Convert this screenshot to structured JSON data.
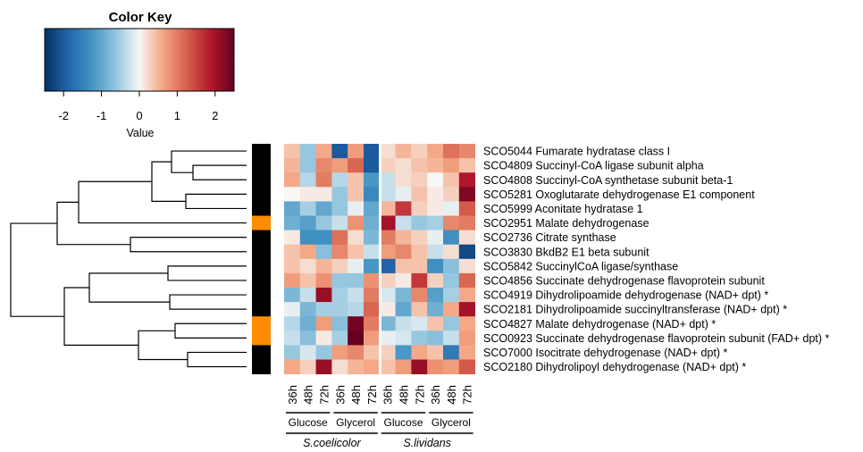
{
  "chart_data": {
    "type": "heatmap",
    "color_key": {
      "title": "Color Key",
      "xlabel": "Value",
      "range": [
        -2.5,
        2.5
      ],
      "ticks": [
        -2,
        -1,
        0,
        1,
        2
      ],
      "tick_labels": [
        "-2",
        "-1",
        "0",
        "1",
        "2"
      ],
      "colors": [
        "#053061",
        "#2166ac",
        "#4393c3",
        "#92c5de",
        "#f7f7f7",
        "#f4a582",
        "#d6604d",
        "#b2182b",
        "#67001f"
      ]
    },
    "rows": [
      "SCO5044 Fumarate hydratase class I",
      "SCO4809 Succinyl-CoA ligase subunit alpha",
      "SCO4808 Succinyl-CoA synthetase subunit beta-1",
      "SCO5281 Oxoglutarate dehydrogenase E1 component",
      "SCO5999 Aconitate hydratase 1",
      "SCO2951 Malate dehydrogenase",
      "SCO2736 Citrate synthase",
      "SCO3830 BkdB2 E1 beta subunit",
      "SCO5842 SuccinylCoA ligase/synthase",
      "SCO4856 Succinate dehydrogenase flavoprotein subunit",
      "SCO4919 Dihydrolipoamide dehydrogenase (NAD+ dpt) *",
      "SCO2181 Dihydrolipoamide succinyltransferase (NAD+ dpt) *",
      "SCO4827 Malate dehydrogenase (NAD+ dpt) *",
      "SCO0923 Succinate dehydrogenase flavoprotein subunit (FAD+ dpt) *",
      "SCO7000 Isocitrate dehydrogenase (NAD+ dpt) *",
      "SCO2180 Dihydrolipoyl dehydrogenase (NAD+ dpt) *"
    ],
    "columns": [
      "36h",
      "48h",
      "72h",
      "36h",
      "48h",
      "72h",
      "36h",
      "48h",
      "72h",
      "36h",
      "48h",
      "72h"
    ],
    "condition_groups": [
      {
        "label": "Glucose",
        "columns": [
          0,
          1,
          2
        ]
      },
      {
        "label": "Glycerol",
        "columns": [
          3,
          4,
          5
        ]
      },
      {
        "label": "Glucose",
        "columns": [
          6,
          7,
          8
        ]
      },
      {
        "label": "Glycerol",
        "columns": [
          9,
          10,
          11
        ]
      }
    ],
    "species_groups": [
      {
        "label": "S.coelicolor",
        "columns": [
          0,
          5
        ]
      },
      {
        "label": "S.lividans",
        "columns": [
          6,
          11
        ]
      }
    ],
    "side_colors": [
      "#000000",
      "#000000",
      "#000000",
      "#000000",
      "#000000",
      "#ff8c00",
      "#000000",
      "#000000",
      "#000000",
      "#000000",
      "#000000",
      "#000000",
      "#ff8c00",
      "#ff8c00",
      "#000000",
      "#000000"
    ],
    "values": [
      [
        0.4,
        -0.6,
        0.6,
        -2.0,
        0.7,
        -2.0,
        0.2,
        0.5,
        0.3,
        0.6,
        1.1,
        0.9
      ],
      [
        0.5,
        -0.6,
        0.9,
        0.7,
        1.2,
        -2.0,
        0.3,
        0.2,
        0.4,
        0.5,
        0.7,
        0.4
      ],
      [
        0.6,
        -0.4,
        1.0,
        -0.4,
        0.4,
        -1.2,
        -0.3,
        0.2,
        0.3,
        0.0,
        0.4,
        1.9
      ],
      [
        0.0,
        0.1,
        0.1,
        -0.6,
        0.4,
        -1.4,
        -0.3,
        -0.1,
        0.4,
        0.1,
        0.3,
        2.3
      ],
      [
        -1.0,
        -0.5,
        -1.0,
        -0.6,
        -0.1,
        -1.0,
        0.5,
        1.6,
        0.3,
        0.1,
        -0.1,
        1.3
      ],
      [
        -0.9,
        -1.1,
        -0.6,
        -0.3,
        0.8,
        -0.9,
        2.0,
        -0.3,
        -0.6,
        -0.5,
        0.9,
        1.0
      ],
      [
        0.1,
        -1.3,
        -1.3,
        1.1,
        0.2,
        -0.8,
        1.0,
        0.5,
        0.3,
        -0.1,
        -1.3,
        0.2
      ],
      [
        0.4,
        0.6,
        -0.7,
        0.9,
        0.4,
        -0.3,
        0.7,
        0.9,
        0.4,
        -0.3,
        0.2,
        -2.2
      ],
      [
        0.4,
        0.2,
        0.5,
        0.3,
        -0.1,
        -1.2,
        -1.9,
        0.4,
        0.4,
        -1.3,
        -0.7,
        0.2
      ],
      [
        0.7,
        0.4,
        0.8,
        -0.6,
        -0.6,
        0.8,
        0.3,
        0.1,
        1.6,
        0.3,
        -0.6,
        1.2
      ],
      [
        -0.8,
        -0.3,
        2.1,
        -0.5,
        -0.3,
        1.0,
        -0.2,
        -0.8,
        0.9,
        -1.1,
        -0.5,
        0.6
      ],
      [
        -0.1,
        -0.8,
        -0.5,
        -0.5,
        -0.4,
        1.2,
        0.1,
        -1.0,
        0.4,
        -0.9,
        0.6,
        2.0
      ],
      [
        -0.4,
        -0.9,
        0.7,
        -0.7,
        2.4,
        1.0,
        -0.8,
        -0.3,
        -0.2,
        0.4,
        -0.6,
        0.6
      ],
      [
        -0.3,
        -0.7,
        0.1,
        -0.5,
        2.8,
        0.7,
        -0.1,
        -0.2,
        -0.6,
        -0.7,
        -0.3,
        0.7
      ],
      [
        -0.6,
        -0.2,
        -0.6,
        0.7,
        0.9,
        0.4,
        0.3,
        -1.2,
        0.6,
        0.4,
        -1.6,
        0.6
      ],
      [
        0.6,
        0.3,
        2.1,
        0.2,
        0.5,
        0.6,
        0.4,
        0.7,
        2.1,
        0.8,
        0.7,
        1.3
      ]
    ]
  }
}
